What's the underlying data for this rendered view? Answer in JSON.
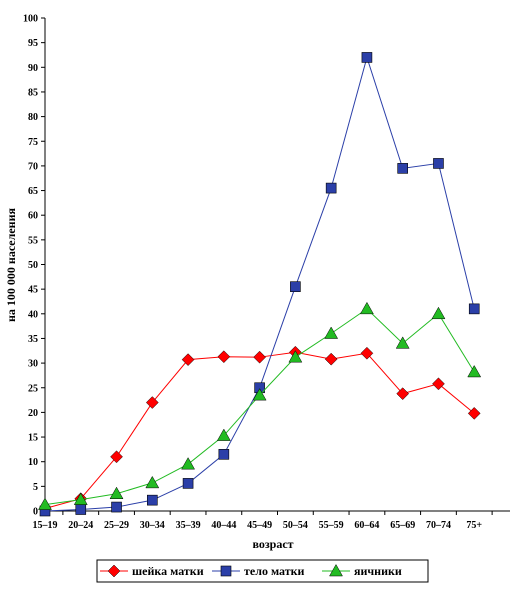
{
  "chart_data": {
    "type": "line",
    "xlabel": "возраст",
    "ylabel": "на 100 000 населения",
    "ylim": [
      0,
      100
    ],
    "y_ticks": [
      "0",
      "5",
      "10",
      "15",
      "20",
      "25",
      "30",
      "35",
      "40",
      "45",
      "50",
      "55",
      "60",
      "65",
      "70",
      "75",
      "80",
      "85",
      "90",
      "95",
      "100"
    ],
    "categories": [
      "15–19",
      "20–24",
      "25–29",
      "30–34",
      "35–39",
      "40–44",
      "45–49",
      "50–54",
      "55–59",
      "60–64",
      "65–69",
      "70–74",
      "75+"
    ],
    "grid": false,
    "legend_position": "bottom",
    "series": [
      {
        "name": "шейка матки",
        "marker": "diamond",
        "color": "#ff0000",
        "values": [
          0.5,
          2.5,
          11,
          22,
          30.7,
          31.3,
          31.2,
          32.2,
          30.8,
          32.0,
          23.8,
          25.8,
          19.8
        ]
      },
      {
        "name": "тело матки",
        "marker": "square",
        "color": "#2b3fa8",
        "values": [
          0,
          0.3,
          0.8,
          2.2,
          5.6,
          11.5,
          25.0,
          45.5,
          65.5,
          92.0,
          69.5,
          70.5,
          41.0
        ]
      },
      {
        "name": "яичники",
        "marker": "triangle",
        "color": "#22bb22",
        "values": [
          1.3,
          2.3,
          3.5,
          5.7,
          9.5,
          15.3,
          23.5,
          31.2,
          36.0,
          41.0,
          34.0,
          40.0,
          28.2
        ]
      }
    ]
  }
}
